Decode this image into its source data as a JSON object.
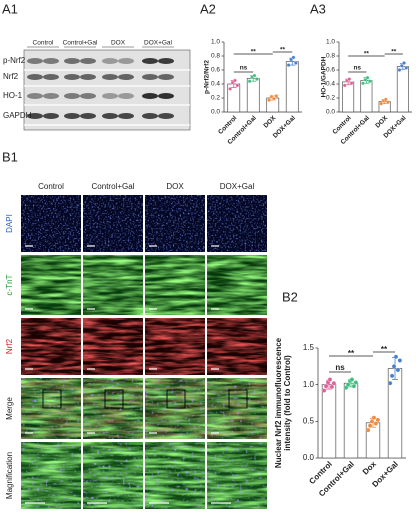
{
  "panels": {
    "a1": "A1",
    "a2": "A2",
    "a3": "A3",
    "b1": "B1",
    "b2": "B2"
  },
  "blot": {
    "columns": [
      "Control",
      "Control+Gal",
      "DOX",
      "DOX+Gal"
    ],
    "rows": [
      "p-Nrf2",
      "Nrf2",
      "HO-1",
      "GAPDH"
    ]
  },
  "microscopy": {
    "columns": [
      "Control",
      "Control+Gal",
      "DOX",
      "DOX+Gal"
    ],
    "rows": [
      "DAPI",
      "c-TnT",
      "Nrf2",
      "Merge",
      "Magnification"
    ],
    "row_colors": [
      "#2a5cc9",
      "#1e9a2a",
      "#d42020",
      "#222",
      "#222"
    ]
  },
  "chart_data": [
    {
      "type": "bar",
      "y_label": [
        "p-Nrf2/Nrf2"
      ],
      "categories": [
        "Control",
        "Control+Gal",
        "DOX",
        "DOX+Gal"
      ],
      "values": [
        0.4,
        0.48,
        0.2,
        0.72
      ],
      "errors": [
        0.05,
        0.04,
        0.03,
        0.05
      ],
      "points": [
        [
          0.33,
          0.42,
          0.45,
          0.38
        ],
        [
          0.44,
          0.5,
          0.52,
          0.47
        ],
        [
          0.17,
          0.22,
          0.19,
          0.23
        ],
        [
          0.67,
          0.75,
          0.78,
          0.7
        ]
      ],
      "colors": [
        "#e0609a",
        "#3fbf7f",
        "#f08a3c",
        "#4a7fd0"
      ],
      "ylim": [
        0,
        1
      ],
      "yticks": [
        {
          "value": 0,
          "label": "0.0"
        },
        0.2,
        0.4,
        0.6,
        0.8,
        {
          "value": 1,
          "label": "1.0"
        }
      ],
      "annotations": [
        {
          "text": "ns",
          "from": 0,
          "to": 1
        },
        {
          "text": "**",
          "from": 0,
          "to": 2
        },
        {
          "text": "**",
          "from": 2,
          "to": 3
        }
      ]
    },
    {
      "type": "bar",
      "y_label": [
        "HO-1/GAPDH"
      ],
      "categories": [
        "Control",
        "Control+Gal",
        "DOX",
        "DOX+Gal"
      ],
      "values": [
        0.43,
        0.45,
        0.15,
        0.65
      ],
      "errors": [
        0.04,
        0.04,
        0.03,
        0.04
      ],
      "points": [
        [
          0.38,
          0.45,
          0.47,
          0.41
        ],
        [
          0.41,
          0.46,
          0.49,
          0.44
        ],
        [
          0.12,
          0.16,
          0.18,
          0.14
        ],
        [
          0.6,
          0.66,
          0.7,
          0.63
        ]
      ],
      "colors": [
        "#e0609a",
        "#3fbf7f",
        "#f08a3c",
        "#4a7fd0"
      ],
      "ylim": [
        0,
        1
      ],
      "yticks": [
        {
          "value": 0,
          "label": "0.0"
        },
        0.2,
        0.4,
        0.6,
        0.8,
        {
          "value": 1,
          "label": "1.0"
        }
      ],
      "annotations": [
        {
          "text": "ns",
          "from": 0,
          "to": 1
        },
        {
          "text": "**",
          "from": 0,
          "to": 2
        },
        {
          "text": "**",
          "from": 2,
          "to": 3
        }
      ]
    },
    {
      "type": "bar",
      "y_label": [
        "Nuclear Nrf2 immunofluorescence",
        "intensity (fold to Control)"
      ],
      "categories": [
        "Control",
        "Control+Gal",
        "Dox",
        "Dox+Gal"
      ],
      "values": [
        1.0,
        1.02,
        0.48,
        1.22
      ],
      "errors": [
        0.06,
        0.05,
        0.06,
        0.15
      ],
      "points": [
        [
          0.92,
          0.98,
          1.03,
          1.07,
          0.97,
          1.02
        ],
        [
          0.96,
          1.0,
          1.05,
          1.07,
          0.98,
          1.03
        ],
        [
          0.38,
          0.44,
          0.5,
          0.55,
          0.47,
          0.52
        ],
        [
          1.02,
          1.12,
          1.25,
          1.38,
          1.2,
          1.33
        ]
      ],
      "colors": [
        "#e0609a",
        "#3fbf7f",
        "#f08a3c",
        "#4a7fd0"
      ],
      "ylim": [
        0,
        1.5
      ],
      "yticks": [
        {
          "value": 0,
          "label": "0.0"
        },
        0.5,
        {
          "value": 1,
          "label": "1.0"
        },
        1.5
      ],
      "annotations": [
        {
          "text": "ns",
          "from": 0,
          "to": 1
        },
        {
          "text": "**",
          "from": 0,
          "to": 2
        },
        {
          "text": "**",
          "from": 2,
          "to": 3
        }
      ]
    }
  ]
}
